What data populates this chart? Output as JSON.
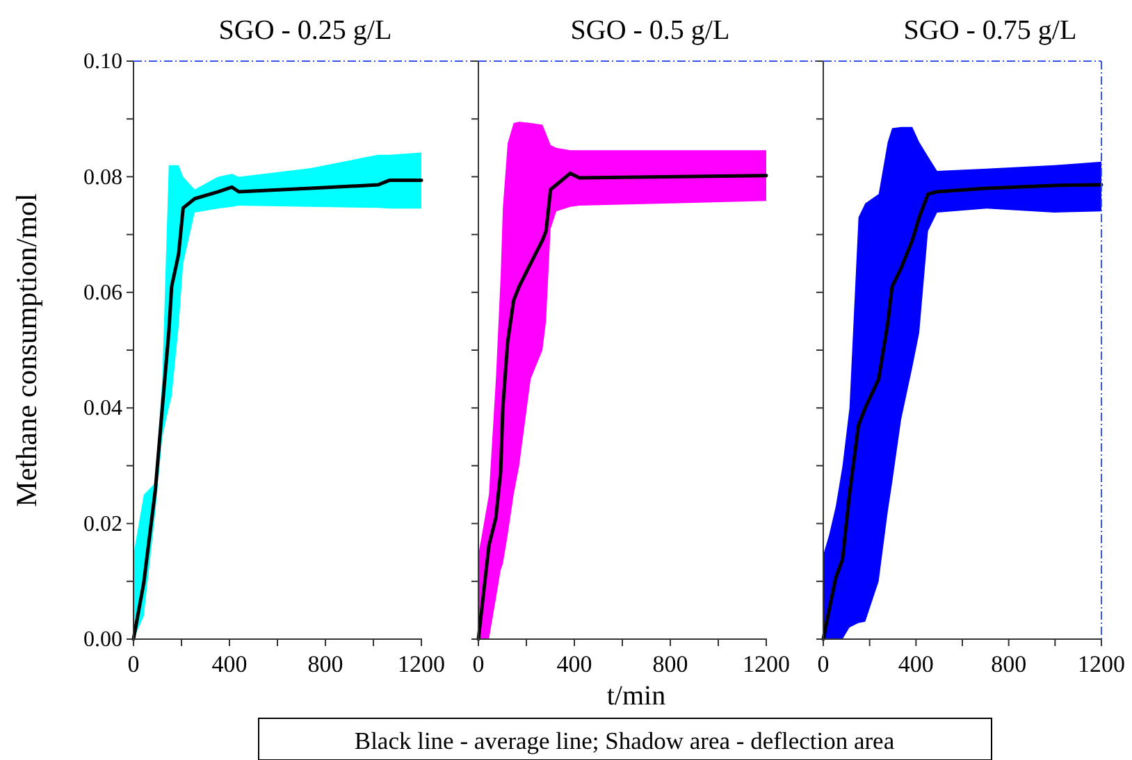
{
  "chart_data": [
    {
      "type": "line",
      "title": "SGO - 0.25 g/L",
      "ylabel": "Methane consumption/mol",
      "xlim": [
        0,
        1200
      ],
      "ylim": [
        0,
        0.1
      ],
      "xticks": [
        0,
        {
          "value": 200,
          "label": null
        },
        400,
        {
          "value": 600,
          "label": null
        },
        800,
        {
          "value": 1000,
          "label": null
        },
        1200
      ],
      "yticks": [
        "0.00",
        {
          "value": 0.01,
          "label": null
        },
        {
          "value": 0.02,
          "label": "0.02"
        },
        {
          "value": 0.03,
          "label": null
        },
        {
          "value": 0.04,
          "label": "0.04"
        },
        {
          "value": 0.05,
          "label": null
        },
        {
          "value": 0.06,
          "label": "0.06"
        },
        {
          "value": 0.07,
          "label": null
        },
        {
          "value": 0.08,
          "label": "0.08"
        },
        {
          "value": 0.09,
          "label": null
        },
        {
          "value": 0.1,
          "label": "0.10"
        }
      ],
      "colors": [
        "#00ffff"
      ],
      "series": [
        {
          "color": "#000000",
          "x": [
            0,
            43,
            91,
            120,
            147,
            159,
            188,
            207,
            255,
            352,
            410,
            439,
            739,
            1020,
            1068,
            1200
          ],
          "values": [
            0,
            0.0098,
            0.0258,
            0.04,
            0.053,
            0.061,
            0.0666,
            0.0746,
            0.0762,
            0.0774,
            0.0782,
            0.0774,
            0.078,
            0.0786,
            0.0794,
            0.0794
          ],
          "upper": [
            0.0146,
            0.025,
            0.027,
            0.045,
            0.082,
            0.082,
            0.082,
            0.08,
            0.0778,
            0.08,
            0.0805,
            0.08,
            0.0815,
            0.0838,
            0.0838,
            0.0842
          ],
          "lower": [
            0,
            0.004,
            0.022,
            0.035,
            0.04,
            0.042,
            0.054,
            0.065,
            0.0738,
            0.0745,
            0.0748,
            0.075,
            0.0748,
            0.0746,
            0.0745,
            0.0745
          ]
        }
      ]
    },
    {
      "type": "line",
      "title": "SGO - 0.5 g/L",
      "xlabel": "t/min",
      "annotations": [
        "Black line - average line; Shadow area - deflection area"
      ],
      "tick_labels": "x",
      "xlim": [
        0,
        1200
      ],
      "ylim": [
        0,
        0.1
      ],
      "xticks": [
        0,
        {
          "value": 200,
          "label": null
        },
        400,
        {
          "value": 600,
          "label": null
        },
        800,
        {
          "value": 1000,
          "label": null
        },
        1200
      ],
      "yticks": [
        {
          "value": 0,
          "label": null
        },
        {
          "value": 0.01,
          "label": null
        },
        {
          "value": 0.02,
          "label": null
        },
        {
          "value": 0.03,
          "label": null
        },
        {
          "value": 0.04,
          "label": null
        },
        {
          "value": 0.05,
          "label": null
        },
        {
          "value": 0.06,
          "label": null
        },
        {
          "value": 0.07,
          "label": null
        },
        {
          "value": 0.08,
          "label": null
        },
        {
          "value": 0.09,
          "label": null
        },
        {
          "value": 0.1,
          "label": null
        }
      ],
      "colors": [
        "#ff00ff"
      ],
      "series": [
        {
          "color": "#000000",
          "x": [
            0,
            44,
            73,
            93,
            102,
            122,
            147,
            170,
            218,
            267,
            282,
            301,
            325,
            383,
            421,
            1200
          ],
          "values": [
            0,
            0.0162,
            0.021,
            0.029,
            0.04,
            0.0514,
            0.0586,
            0.061,
            0.065,
            0.069,
            0.0706,
            0.0778,
            0.0786,
            0.0806,
            0.0798,
            0.0802
          ],
          "upper": [
            0.0146,
            0.025,
            0.045,
            0.063,
            0.0746,
            0.0858,
            0.0893,
            0.0895,
            0.0893,
            0.089,
            0.0875,
            0.0855,
            0.085,
            0.0846,
            0.0846,
            0.0846
          ],
          "lower": [
            0,
            0,
            0.007,
            0.012,
            0.013,
            0.018,
            0.025,
            0.03,
            0.045,
            0.05,
            0.055,
            0.071,
            0.074,
            0.0748,
            0.075,
            0.0758
          ]
        }
      ]
    },
    {
      "type": "line",
      "title": "SGO - 0.75 g/L",
      "tick_labels": "x",
      "xlim": [
        0,
        1200
      ],
      "ylim": [
        0,
        0.1
      ],
      "xticks": [
        0,
        {
          "value": 200,
          "label": null
        },
        400,
        {
          "value": 600,
          "label": null
        },
        800,
        {
          "value": 1000,
          "label": null
        },
        1200
      ],
      "yticks": [
        {
          "value": 0,
          "label": null
        },
        {
          "value": 0.01,
          "label": null
        },
        {
          "value": 0.02,
          "label": null
        },
        {
          "value": 0.03,
          "label": null
        },
        {
          "value": 0.04,
          "label": null
        },
        {
          "value": 0.05,
          "label": null
        },
        {
          "value": 0.06,
          "label": null
        },
        {
          "value": 0.07,
          "label": null
        },
        {
          "value": 0.08,
          "label": null
        },
        {
          "value": 0.09,
          "label": null
        },
        {
          "value": 0.1,
          "label": null
        }
      ],
      "colors": [
        "#0000ff"
      ],
      "series": [
        {
          "color": "#000000",
          "x": [
            0,
            25,
            54,
            83,
            113,
            152,
            181,
            239,
            278,
            297,
            336,
            384,
            414,
            452,
            491,
            705,
            996,
            1200
          ],
          "values": [
            0,
            0.005,
            0.0106,
            0.0138,
            0.025,
            0.037,
            0.04,
            0.045,
            0.0546,
            0.061,
            0.0642,
            0.069,
            0.073,
            0.077,
            0.0774,
            0.078,
            0.0785,
            0.0786
          ],
          "upper": [
            0.0146,
            0.018,
            0.023,
            0.03,
            0.04,
            0.073,
            0.0754,
            0.077,
            0.086,
            0.0884,
            0.0886,
            0.0886,
            0.086,
            0.0835,
            0.081,
            0.0814,
            0.082,
            0.0826
          ],
          "lower": [
            0,
            0,
            0,
            0,
            0.002,
            0.0028,
            0.003,
            0.01,
            0.022,
            0.027,
            0.038,
            0.047,
            0.053,
            0.0706,
            0.0738,
            0.0745,
            0.0738,
            0.074
          ]
        }
      ]
    }
  ]
}
